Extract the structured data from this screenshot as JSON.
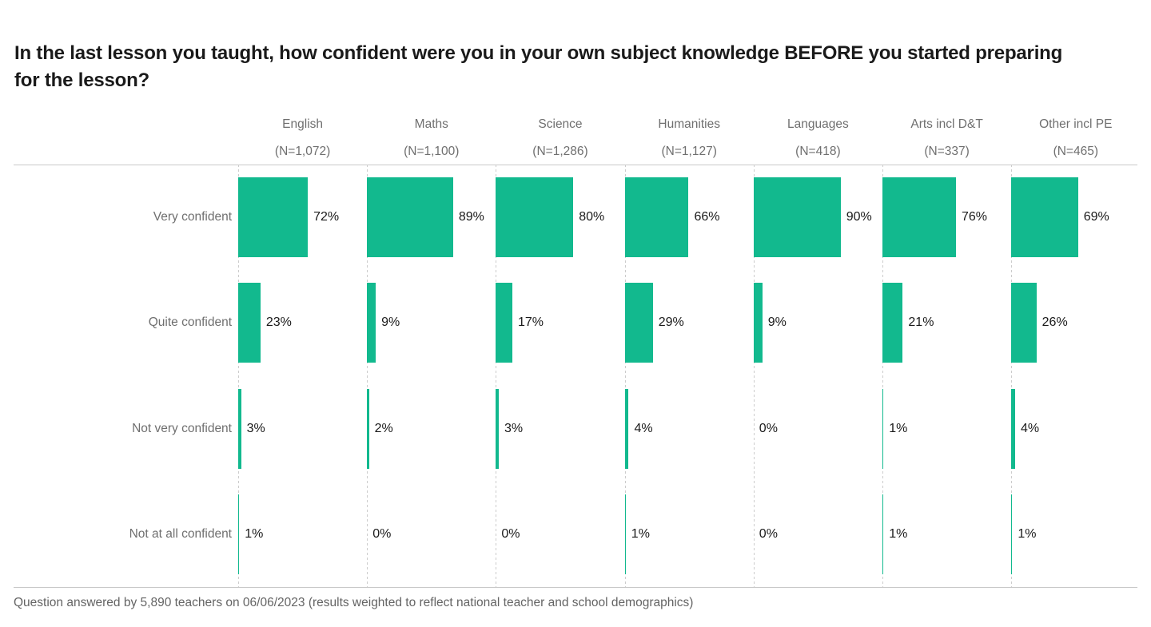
{
  "title": "In the last lesson you taught, how confident were you in your own subject knowledge BEFORE you started preparing for the lesson?",
  "footer": "Question answered by 5,890 teachers on 06/06/2023 (results weighted to reflect national teacher and school demographics)",
  "colors": {
    "bar": "#12b98e",
    "label_gray": "#6f6f6f",
    "value_black": "#1a1a1a",
    "grid": "#c9c9c9"
  },
  "chart_data": {
    "type": "bar",
    "orientation": "horizontal",
    "title": "In the last lesson you taught, how confident were you in your own subject knowledge BEFORE you started preparing for the lesson?",
    "value_suffix": "%",
    "xlim": [
      0,
      100
    ],
    "legend": "none",
    "grid": "dashed vertical baseline per column",
    "columns": [
      {
        "label": "English",
        "n_label": "(N=1,072)"
      },
      {
        "label": "Maths",
        "n_label": "(N=1,100)"
      },
      {
        "label": "Science",
        "n_label": "(N=1,286)"
      },
      {
        "label": "Humanities",
        "n_label": "(N=1,127)"
      },
      {
        "label": "Languages",
        "n_label": "(N=418)"
      },
      {
        "label": "Arts incl D&T",
        "n_label": "(N=337)"
      },
      {
        "label": "Other incl PE",
        "n_label": "(N=465)"
      }
    ],
    "categories": [
      "Very confident",
      "Quite confident",
      "Not very confident",
      "Not at all confident"
    ],
    "series": [
      {
        "name": "English",
        "values": [
          72,
          23,
          3,
          1
        ]
      },
      {
        "name": "Maths",
        "values": [
          89,
          9,
          2,
          0
        ]
      },
      {
        "name": "Science",
        "values": [
          80,
          17,
          3,
          0
        ]
      },
      {
        "name": "Humanities",
        "values": [
          66,
          29,
          4,
          1
        ]
      },
      {
        "name": "Languages",
        "values": [
          90,
          9,
          0,
          0
        ]
      },
      {
        "name": "Arts incl D&T",
        "values": [
          76,
          21,
          1,
          1
        ]
      },
      {
        "name": "Other incl PE",
        "values": [
          69,
          26,
          4,
          1
        ]
      }
    ]
  }
}
